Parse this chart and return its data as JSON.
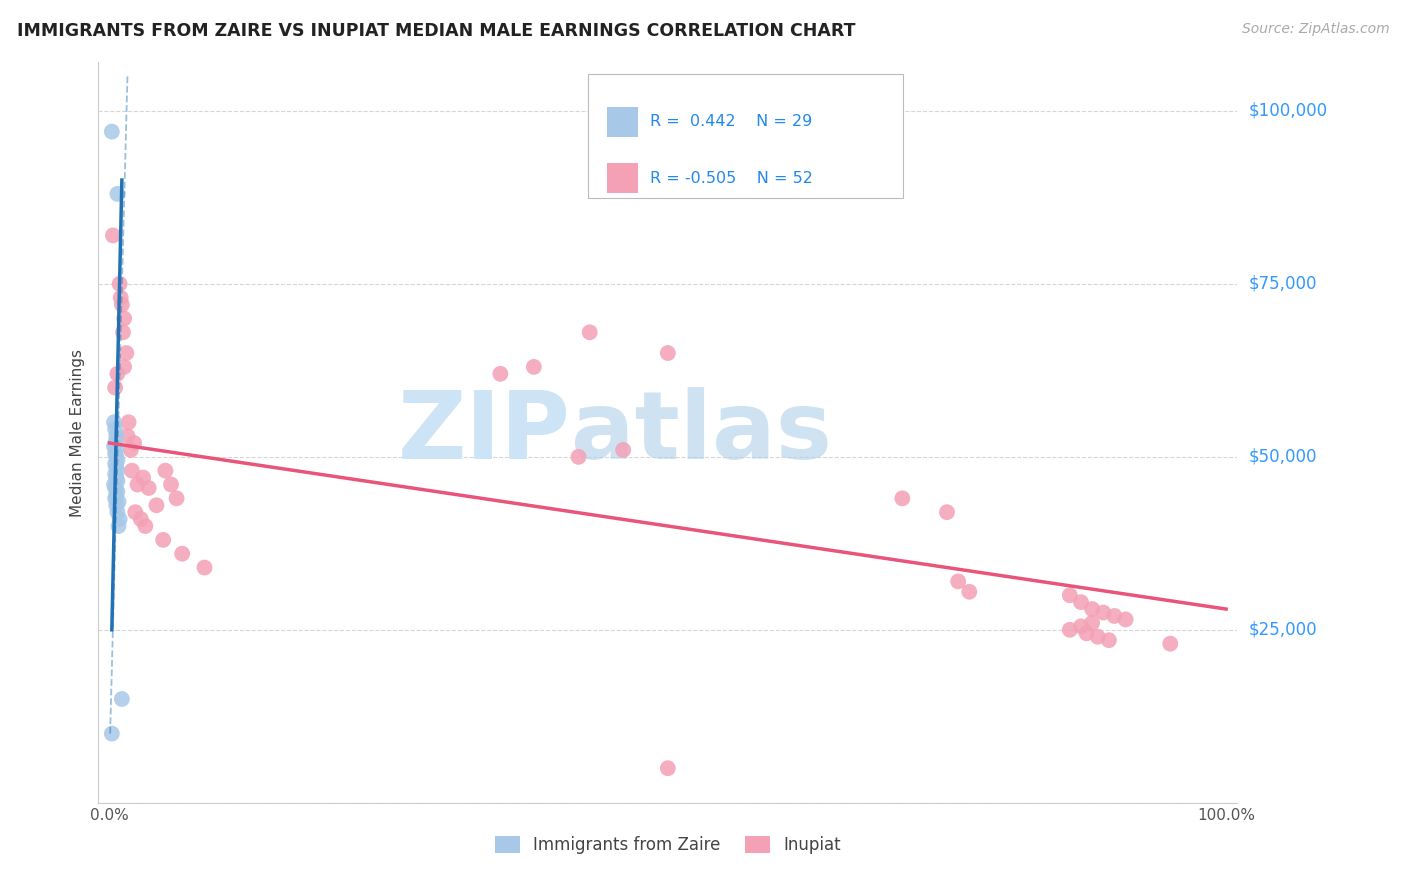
{
  "title": "IMMIGRANTS FROM ZAIRE VS INUPIAT MEDIAN MALE EARNINGS CORRELATION CHART",
  "source": "Source: ZipAtlas.com",
  "ylabel": "Median Male Earnings",
  "legend1_r": "R =  0.442",
  "legend1_n": "N = 29",
  "legend2_r": "R = -0.505",
  "legend2_n": "N = 52",
  "blue_color": "#a8c8e8",
  "pink_color": "#f4a0b5",
  "blue_line_color": "#2171b5",
  "pink_line_color": "#e8547a",
  "blue_scatter": [
    [
      0.002,
      97000
    ],
    [
      0.007,
      88000
    ],
    [
      0.004,
      55000
    ],
    [
      0.005,
      54000
    ],
    [
      0.006,
      53000
    ],
    [
      0.005,
      52000
    ],
    [
      0.004,
      51500
    ],
    [
      0.006,
      51000
    ],
    [
      0.005,
      50500
    ],
    [
      0.006,
      50000
    ],
    [
      0.007,
      49500
    ],
    [
      0.005,
      49000
    ],
    [
      0.006,
      48500
    ],
    [
      0.007,
      48000
    ],
    [
      0.005,
      47500
    ],
    [
      0.006,
      47000
    ],
    [
      0.007,
      46500
    ],
    [
      0.004,
      46000
    ],
    [
      0.005,
      45500
    ],
    [
      0.007,
      45000
    ],
    [
      0.006,
      44500
    ],
    [
      0.005,
      44000
    ],
    [
      0.008,
      43500
    ],
    [
      0.006,
      43000
    ],
    [
      0.007,
      42000
    ],
    [
      0.009,
      41000
    ],
    [
      0.008,
      40000
    ],
    [
      0.011,
      15000
    ],
    [
      0.002,
      10000
    ]
  ],
  "pink_scatter": [
    [
      0.003,
      82000
    ],
    [
      0.009,
      75000
    ],
    [
      0.01,
      73000
    ],
    [
      0.011,
      72000
    ],
    [
      0.013,
      70000
    ],
    [
      0.012,
      68000
    ],
    [
      0.015,
      65000
    ],
    [
      0.013,
      63000
    ],
    [
      0.007,
      62000
    ],
    [
      0.005,
      60000
    ],
    [
      0.43,
      68000
    ],
    [
      0.5,
      65000
    ],
    [
      0.38,
      63000
    ],
    [
      0.35,
      62000
    ],
    [
      0.42,
      50000
    ],
    [
      0.46,
      51000
    ],
    [
      0.02,
      48000
    ],
    [
      0.025,
      46000
    ],
    [
      0.03,
      47000
    ],
    [
      0.035,
      45500
    ],
    [
      0.017,
      55000
    ],
    [
      0.016,
      53000
    ],
    [
      0.06,
      44000
    ],
    [
      0.042,
      43000
    ],
    [
      0.022,
      52000
    ],
    [
      0.019,
      51000
    ],
    [
      0.05,
      48000
    ],
    [
      0.055,
      46000
    ],
    [
      0.023,
      42000
    ],
    [
      0.028,
      41000
    ],
    [
      0.032,
      40000
    ],
    [
      0.048,
      38000
    ],
    [
      0.065,
      36000
    ],
    [
      0.085,
      34000
    ],
    [
      0.71,
      44000
    ],
    [
      0.75,
      42000
    ],
    [
      0.76,
      32000
    ],
    [
      0.77,
      30500
    ],
    [
      0.86,
      30000
    ],
    [
      0.87,
      29000
    ],
    [
      0.88,
      28000
    ],
    [
      0.89,
      27500
    ],
    [
      0.9,
      27000
    ],
    [
      0.91,
      26500
    ],
    [
      0.88,
      26000
    ],
    [
      0.87,
      25500
    ],
    [
      0.86,
      25000
    ],
    [
      0.875,
      24500
    ],
    [
      0.885,
      24000
    ],
    [
      0.895,
      23500
    ],
    [
      0.95,
      23000
    ],
    [
      0.5,
      5000
    ]
  ],
  "blue_solid_line": {
    "x": [
      0.002,
      0.011
    ],
    "y": [
      25000,
      90000
    ]
  },
  "blue_dash_line": {
    "x": [
      0.0005,
      0.016
    ],
    "y": [
      10000,
      105000
    ]
  },
  "pink_line": {
    "x": [
      0.0,
      1.0
    ],
    "y": [
      52000,
      28000
    ]
  },
  "xlim": [
    -0.01,
    1.01
  ],
  "ylim": [
    0,
    107000
  ],
  "background_color": "#ffffff",
  "watermark_zip": "ZIP",
  "watermark_atlas": "atlas",
  "watermark_color": "#cce4f5"
}
